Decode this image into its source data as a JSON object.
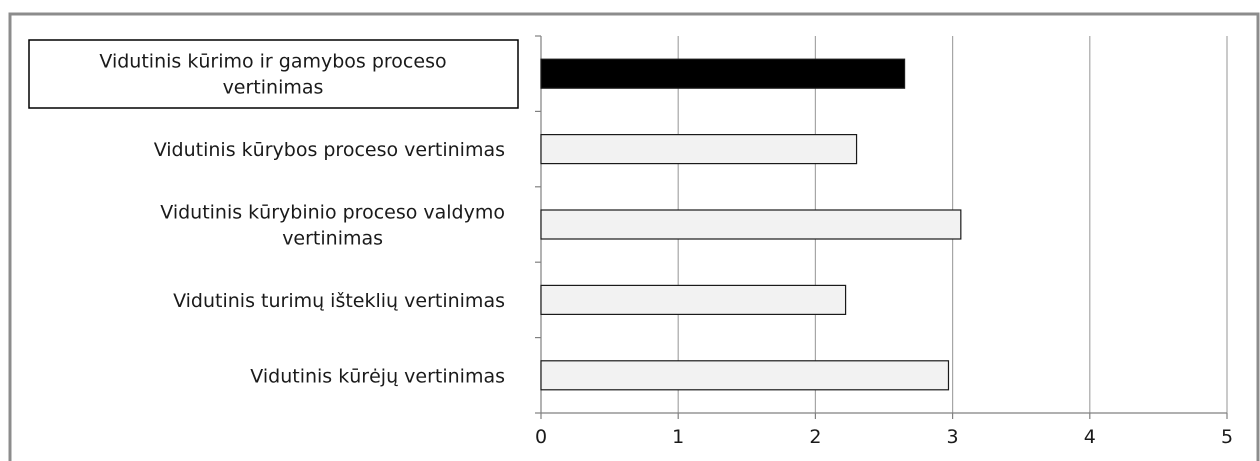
{
  "chart_data": {
    "type": "bar",
    "orientation": "horizontal",
    "categories": [
      "Vidutinis kūrimo ir gamybos proceso vertinimas",
      "Vidutinis kūrybos proceso vertinimas",
      "Vidutinis kūrybinio proceso valdymo vertinimas",
      "Vidutinis turimų išteklių vertinimas",
      "Vidutinis kūrėjų vertinimas"
    ],
    "category_lines": [
      [
        "Vidutinis kūrimo ir gamybos proceso",
        "vertinimas"
      ],
      [
        "Vidutinis kūrybos proceso vertinimas"
      ],
      [
        "Vidutinis kūrybinio proceso valdymo",
        "vertinimas"
      ],
      [
        "Vidutinis turimų išteklių vertinimas"
      ],
      [
        "Vidutinis kūrėjų vertinimas"
      ]
    ],
    "values": [
      2.65,
      2.3,
      3.06,
      2.22,
      2.97
    ],
    "highlight_index": 0,
    "colors": {
      "highlight": "#000000",
      "default": "#f2f2f2"
    },
    "xlim": [
      0,
      5
    ],
    "xticks": [
      "0",
      "1",
      "2",
      "3",
      "4",
      "5"
    ],
    "grid": true,
    "title": "",
    "xlabel": "",
    "ylabel": ""
  }
}
